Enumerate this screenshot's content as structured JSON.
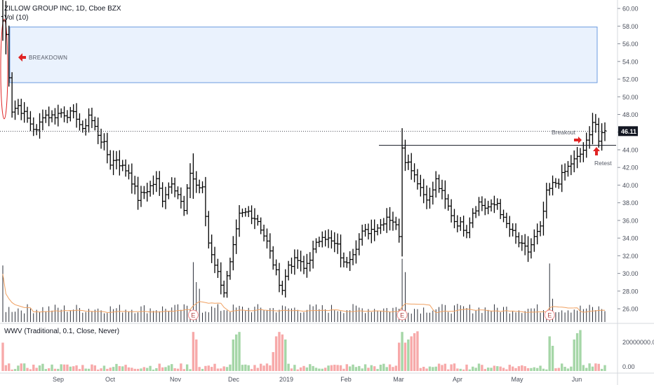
{
  "header": {
    "title": "ZILLOW GROUP INC, 1D, Cboe BZX",
    "vol_label": "Vol (10)"
  },
  "lower_pane": {
    "label": "WWV (Traditional, 0.1, Close, Never)",
    "tick_labels": [
      "20000000.00",
      "0.00"
    ]
  },
  "annotations": {
    "breakdown": "BREAKDOWN",
    "breakout": "Breakout",
    "retest": "Retest"
  },
  "price_tag": "46.11",
  "earnings_marker": "E",
  "colors": {
    "bar": "#000000",
    "up": "#a5d6a7",
    "down": "#f7a9a9",
    "vol_ma": "#f0a060",
    "zone_fill": "#eaf2fd",
    "zone_border": "#6b9be0",
    "arrow": "#e02424",
    "price_tag_bg": "#131722",
    "earnings_border": "#f28b8b"
  },
  "chart_data": {
    "type": "ohlc",
    "y_ticks": [
      "60.00",
      "58.00",
      "56.00",
      "54.00",
      "52.00",
      "50.00",
      "48.00",
      "46.00",
      "44.00",
      "42.00",
      "40.00",
      "38.00",
      "36.00",
      "34.00",
      "32.00",
      "30.00",
      "28.00",
      "26.00"
    ],
    "x_ticks": [
      "Sep",
      "Oct",
      "Nov",
      "Dec",
      "2019",
      "Feb",
      "Mar",
      "Apr",
      "May",
      "Jun"
    ],
    "ylim": [
      24.5,
      60.8
    ],
    "last_price": 46.11,
    "breakdown_zone": [
      51.6,
      57.9
    ],
    "breakout_level": 44.5,
    "anchors": [
      [
        0,
        58.6
      ],
      [
        1,
        57.0
      ],
      [
        2,
        52.5
      ],
      [
        3,
        48.5
      ],
      [
        5,
        49.0
      ],
      [
        8,
        47.5
      ],
      [
        11,
        46.0
      ],
      [
        13,
        48.0
      ],
      [
        16,
        47.8
      ],
      [
        19,
        48.2
      ],
      [
        22,
        48.0
      ],
      [
        24,
        47.8
      ],
      [
        26,
        46.0
      ],
      [
        28,
        48.0
      ],
      [
        30,
        46.5
      ],
      [
        33,
        44.5
      ],
      [
        35,
        42.5
      ],
      [
        37,
        43.0
      ],
      [
        39,
        42.0
      ],
      [
        41,
        41.5
      ],
      [
        44,
        38.5
      ],
      [
        47,
        39.5
      ],
      [
        50,
        40.5
      ],
      [
        52,
        38.5
      ],
      [
        55,
        40.5
      ],
      [
        57,
        39.0
      ],
      [
        59,
        37.0
      ],
      [
        61,
        41.5
      ],
      [
        63,
        40.0
      ],
      [
        65,
        39.5
      ],
      [
        67,
        33.5
      ],
      [
        70,
        30.0
      ],
      [
        72,
        28.0
      ],
      [
        74,
        31.0
      ],
      [
        77,
        36.5
      ],
      [
        80,
        37.0
      ],
      [
        83,
        36.0
      ],
      [
        86,
        33.5
      ],
      [
        89,
        30.0
      ],
      [
        91,
        28.2
      ],
      [
        93,
        31.0
      ],
      [
        96,
        31.5
      ],
      [
        98,
        30.5
      ],
      [
        101,
        32.5
      ],
      [
        104,
        34.5
      ],
      [
        107,
        33.5
      ],
      [
        109,
        33.0
      ],
      [
        111,
        31.0
      ],
      [
        114,
        32.5
      ],
      [
        117,
        34.5
      ],
      [
        120,
        35.0
      ],
      [
        123,
        35.5
      ],
      [
        125,
        36.5
      ],
      [
        127,
        36.0
      ],
      [
        129,
        34.5
      ],
      [
        130,
        44.5
      ],
      [
        131,
        43.0
      ],
      [
        133,
        42.0
      ],
      [
        135,
        40.5
      ],
      [
        137,
        39.0
      ],
      [
        139,
        38.5
      ],
      [
        141,
        40.5
      ],
      [
        143,
        39.0
      ],
      [
        145,
        37.5
      ],
      [
        147,
        36.0
      ],
      [
        149,
        35.5
      ],
      [
        151,
        35.0
      ],
      [
        153,
        37.0
      ],
      [
        155,
        38.0
      ],
      [
        157,
        37.5
      ],
      [
        159,
        37.5
      ],
      [
        161,
        38.0
      ],
      [
        163,
        36.0
      ],
      [
        165,
        35.0
      ],
      [
        167,
        34.0
      ],
      [
        169,
        33.0
      ],
      [
        171,
        32.5
      ],
      [
        173,
        34.0
      ],
      [
        175,
        35.0
      ],
      [
        177,
        39.0
      ],
      [
        179,
        40.0
      ],
      [
        181,
        40.5
      ],
      [
        183,
        41.5
      ],
      [
        185,
        42.5
      ],
      [
        187,
        43.0
      ],
      [
        189,
        44.0
      ],
      [
        191,
        45.5
      ],
      [
        192,
        47.5
      ],
      [
        193,
        47.0
      ],
      [
        194,
        45.0
      ],
      [
        195,
        45.5
      ],
      [
        196,
        46.0
      ]
    ],
    "earnings_bars": [
      62,
      130,
      178
    ],
    "volume_spikes": [
      [
        0,
        0.85
      ],
      [
        62,
        0.9
      ],
      [
        63,
        0.6
      ],
      [
        64,
        0.5
      ],
      [
        130,
        0.95
      ],
      [
        131,
        0.75
      ],
      [
        178,
        0.88
      ],
      [
        179,
        0.35
      ]
    ],
    "wwv_spikes": [
      [
        0,
        0.45
      ],
      [
        62,
        0.62
      ],
      [
        63,
        0.5
      ],
      [
        75,
        0.5
      ],
      [
        76,
        0.58
      ],
      [
        77,
        0.62
      ],
      [
        88,
        0.3
      ],
      [
        89,
        0.55
      ],
      [
        90,
        0.62
      ],
      [
        91,
        0.58
      ],
      [
        92,
        0.5
      ],
      [
        129,
        0.45
      ],
      [
        130,
        0.62
      ],
      [
        131,
        0.45
      ],
      [
        132,
        0.5
      ],
      [
        133,
        0.55
      ],
      [
        134,
        0.6
      ],
      [
        135,
        0.63
      ],
      [
        178,
        0.55
      ],
      [
        179,
        0.4
      ],
      [
        186,
        0.5
      ],
      [
        187,
        0.6
      ],
      [
        188,
        0.65
      ]
    ]
  }
}
